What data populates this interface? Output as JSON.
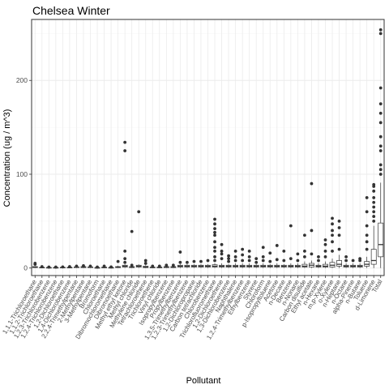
{
  "chart_data": {
    "type": "boxplot",
    "title": "Chelsea Winter",
    "xlabel": "Pollutant",
    "ylabel": "Concentration (ug / m^3)",
    "ylim": [
      -8,
      265
    ],
    "yticks": [
      0,
      100,
      200
    ],
    "grid": true,
    "legend": "none",
    "colors": {
      "panel_bg": "#ffffff",
      "grid_major": "#ebebeb",
      "grid_minor": "#f5f5f5",
      "border": "#333333",
      "points": "#333333",
      "box": "#333333"
    },
    "categories": [
      "1,1,1-Trichloroethane",
      "1,1,2-Trichloroethane",
      "1,2,3-Trichlorobenzene",
      "1,2,4-Trichlorobenzene",
      "1,2-Dichloroethane",
      "1,4-Dichlorobenzene",
      "2,2,4-Trimethylpentane",
      "2-Methylpentane",
      "3-Methylpentane",
      "Bromoform",
      "Chloroethane",
      "Dibromochloromethane",
      "Dibromoethane",
      "Methyl ethyl ketone",
      "Methyl chloride",
      "Methylene chloride",
      "Tetrachloroethene",
      "Trichloroethene",
      "Vinyl chloride",
      "Isopropylbenzene",
      "Propylbenzene",
      "1,3,5-Trimethylbenzene",
      "1,2,3-Trimethylbenzene",
      "1,2-Dichloropropane",
      "Carbon tetrachloride",
      "Chlorobenzene",
      "Trichlorofluoromethane",
      "1,2-Dichloroethene",
      "1,3-Dichlorobenzene",
      "Naphthalene",
      "1,2,4-Trimethylbenzene",
      "Ethylbenzene",
      "Styrene",
      "Chloroform",
      "p-Isopropyltoluene",
      "Acetone",
      "n-Decane",
      "Benzene",
      "n-Nonane",
      "Carbon disulfide",
      "Ethyl acetate",
      "n-Hexane",
      "m,p-Xylene",
      "o-Xylene",
      "n-Heptane",
      "n-Octane",
      "alpha-Pinene",
      "n-Butane",
      "Toluene",
      "d-Limonene",
      "Total"
    ],
    "boxes": [
      {
        "q1": 0.5,
        "median": 1,
        "q3": 1.5,
        "wmin": 0,
        "wmax": 2,
        "outliers": [
          4,
          5
        ]
      },
      {
        "q1": 0.3,
        "median": 0.5,
        "q3": 0.8,
        "wmin": 0,
        "wmax": 1,
        "outliers": [
          1.5
        ]
      },
      {
        "q1": 0.2,
        "median": 0.4,
        "q3": 0.6,
        "wmin": 0,
        "wmax": 0.8,
        "outliers": [
          1
        ]
      },
      {
        "q1": 0.2,
        "median": 0.4,
        "q3": 0.6,
        "wmin": 0,
        "wmax": 0.8,
        "outliers": [
          1
        ]
      },
      {
        "q1": 0.3,
        "median": 0.5,
        "q3": 0.8,
        "wmin": 0,
        "wmax": 1,
        "outliers": [
          1.2
        ]
      },
      {
        "q1": 0.3,
        "median": 0.5,
        "q3": 0.8,
        "wmin": 0,
        "wmax": 1,
        "outliers": [
          1.5
        ]
      },
      {
        "q1": 0.5,
        "median": 0.8,
        "q3": 1.2,
        "wmin": 0,
        "wmax": 1.5,
        "outliers": [
          2
        ]
      },
      {
        "q1": 0.5,
        "median": 1,
        "q3": 1.5,
        "wmin": 0,
        "wmax": 2,
        "outliers": [
          2.5
        ]
      },
      {
        "q1": 0.5,
        "median": 0.8,
        "q3": 1.2,
        "wmin": 0,
        "wmax": 1.5,
        "outliers": [
          2
        ]
      },
      {
        "q1": 0.2,
        "median": 0.3,
        "q3": 0.5,
        "wmin": 0,
        "wmax": 0.6,
        "outliers": [
          1
        ]
      },
      {
        "q1": 0.3,
        "median": 0.6,
        "q3": 0.9,
        "wmin": 0,
        "wmax": 1.2,
        "outliers": [
          2
        ]
      },
      {
        "q1": 0.2,
        "median": 0.4,
        "q3": 0.6,
        "wmin": 0,
        "wmax": 0.8,
        "outliers": [
          1.2
        ]
      },
      {
        "q1": 0.5,
        "median": 1,
        "q3": 1.5,
        "wmin": 0,
        "wmax": 2.5,
        "outliers": [
          7
        ]
      },
      {
        "q1": 1,
        "median": 2,
        "q3": 3,
        "wmin": 0,
        "wmax": 4,
        "outliers": [
          6,
          10,
          18,
          125,
          134
        ]
      },
      {
        "q1": 0.5,
        "median": 1,
        "q3": 1.5,
        "wmin": 0,
        "wmax": 2,
        "outliers": [
          3,
          39
        ]
      },
      {
        "q1": 1,
        "median": 2,
        "q3": 3,
        "wmin": 0,
        "wmax": 4,
        "outliers": [
          60
        ]
      },
      {
        "q1": 0.5,
        "median": 1,
        "q3": 2,
        "wmin": 0,
        "wmax": 3,
        "outliers": [
          5,
          8
        ]
      },
      {
        "q1": 0.3,
        "median": 0.6,
        "q3": 1,
        "wmin": 0,
        "wmax": 1.5,
        "outliers": [
          2
        ]
      },
      {
        "q1": 0.3,
        "median": 0.6,
        "q3": 1,
        "wmin": 0,
        "wmax": 1.5,
        "outliers": [
          2
        ]
      },
      {
        "q1": 0.5,
        "median": 1,
        "q3": 1.5,
        "wmin": 0,
        "wmax": 2,
        "outliers": [
          3
        ]
      },
      {
        "q1": 0.5,
        "median": 1,
        "q3": 1.5,
        "wmin": 0,
        "wmax": 2,
        "outliers": [
          3
        ]
      },
      {
        "q1": 1,
        "median": 2,
        "q3": 3,
        "wmin": 0,
        "wmax": 4,
        "outliers": [
          6,
          17
        ]
      },
      {
        "q1": 1,
        "median": 2,
        "q3": 3,
        "wmin": 0,
        "wmax": 4,
        "outliers": [
          6
        ]
      },
      {
        "q1": 1,
        "median": 2,
        "q3": 3,
        "wmin": 0,
        "wmax": 4,
        "outliers": [
          7
        ]
      },
      {
        "q1": 1,
        "median": 2,
        "q3": 3,
        "wmin": 0,
        "wmax": 4,
        "outliers": [
          7
        ]
      },
      {
        "q1": 1,
        "median": 2,
        "q3": 3,
        "wmin": 0,
        "wmax": 4,
        "outliers": [
          8
        ]
      },
      {
        "q1": 1,
        "median": 2,
        "q3": 3.5,
        "wmin": 0,
        "wmax": 5,
        "outliers": [
          8,
          12,
          18,
          22,
          28,
          35,
          38,
          42,
          47,
          52
        ]
      },
      {
        "q1": 1,
        "median": 2,
        "q3": 3,
        "wmin": 0,
        "wmax": 5,
        "outliers": [
          10,
          15,
          18,
          25
        ]
      },
      {
        "q1": 1,
        "median": 2,
        "q3": 3,
        "wmin": 0,
        "wmax": 4,
        "outliers": [
          7,
          10,
          13
        ]
      },
      {
        "q1": 1,
        "median": 2,
        "q3": 3,
        "wmin": 0,
        "wmax": 5,
        "outliers": [
          8,
          12,
          18
        ]
      },
      {
        "q1": 1,
        "median": 2,
        "q3": 3,
        "wmin": 0,
        "wmax": 5,
        "outliers": [
          8,
          14,
          20
        ]
      },
      {
        "q1": 1,
        "median": 2,
        "q3": 3,
        "wmin": 0,
        "wmax": 5,
        "outliers": [
          8,
          12,
          18
        ]
      },
      {
        "q1": 1,
        "median": 2,
        "q3": 3,
        "wmin": 0,
        "wmax": 4,
        "outliers": [
          6,
          10
        ]
      },
      {
        "q1": 1,
        "median": 2,
        "q3": 3,
        "wmin": 0,
        "wmax": 5,
        "outliers": [
          8,
          12,
          22
        ]
      },
      {
        "q1": 1,
        "median": 2,
        "q3": 3,
        "wmin": 0,
        "wmax": 4,
        "outliers": [
          7,
          16
        ]
      },
      {
        "q1": 1,
        "median": 2,
        "q3": 3,
        "wmin": 0,
        "wmax": 5,
        "outliers": [
          9,
          24
        ]
      },
      {
        "q1": 1,
        "median": 2,
        "q3": 3,
        "wmin": 0,
        "wmax": 4,
        "outliers": [
          8,
          18
        ]
      },
      {
        "q1": 1,
        "median": 2,
        "q3": 3,
        "wmin": 0,
        "wmax": 5,
        "outliers": [
          10,
          45
        ]
      },
      {
        "q1": 1,
        "median": 2,
        "q3": 3,
        "wmin": 0,
        "wmax": 5,
        "outliers": [
          8,
          15
        ]
      },
      {
        "q1": 1,
        "median": 2,
        "q3": 4,
        "wmin": 0,
        "wmax": 7,
        "outliers": [
          12,
          18,
          35
        ]
      },
      {
        "q1": 1,
        "median": 3,
        "q3": 5,
        "wmin": 0,
        "wmax": 8,
        "outliers": [
          15,
          40,
          90
        ]
      },
      {
        "q1": 1,
        "median": 2,
        "q3": 3,
        "wmin": 0,
        "wmax": 5,
        "outliers": [
          8,
          12
        ]
      },
      {
        "q1": 1,
        "median": 2,
        "q3": 4,
        "wmin": 0,
        "wmax": 7,
        "outliers": [
          12,
          18,
          25,
          30
        ]
      },
      {
        "q1": 1,
        "median": 3,
        "q3": 6,
        "wmin": 0,
        "wmax": 10,
        "outliers": [
          18,
          28,
          35,
          40,
          47,
          53
        ]
      },
      {
        "q1": 2,
        "median": 4,
        "q3": 8,
        "wmin": 0,
        "wmax": 14,
        "outliers": [
          20,
          35,
          43,
          50
        ]
      },
      {
        "q1": 1,
        "median": 2,
        "q3": 3,
        "wmin": 0,
        "wmax": 5,
        "outliers": [
          8,
          12
        ]
      },
      {
        "q1": 1,
        "median": 2,
        "q3": 3,
        "wmin": 0,
        "wmax": 5,
        "outliers": [
          8
        ]
      },
      {
        "q1": 1,
        "median": 2,
        "q3": 3,
        "wmin": 0,
        "wmax": 5,
        "outliers": [
          8,
          10
        ]
      },
      {
        "q1": 2,
        "median": 4,
        "q3": 7,
        "wmin": 0,
        "wmax": 12,
        "outliers": [
          20,
          28,
          35,
          45,
          60,
          75
        ]
      },
      {
        "q1": 4,
        "median": 8,
        "q3": 20,
        "wmin": 0,
        "wmax": 45,
        "outliers": [
          50,
          55,
          60,
          65,
          70,
          75,
          82,
          87,
          89
        ]
      },
      {
        "q1": 12,
        "median": 25,
        "q3": 48,
        "wmin": 0,
        "wmax": 91,
        "outliers": [
          100,
          105,
          110,
          125,
          130,
          140,
          155,
          165,
          175,
          192,
          250,
          254
        ]
      }
    ]
  }
}
